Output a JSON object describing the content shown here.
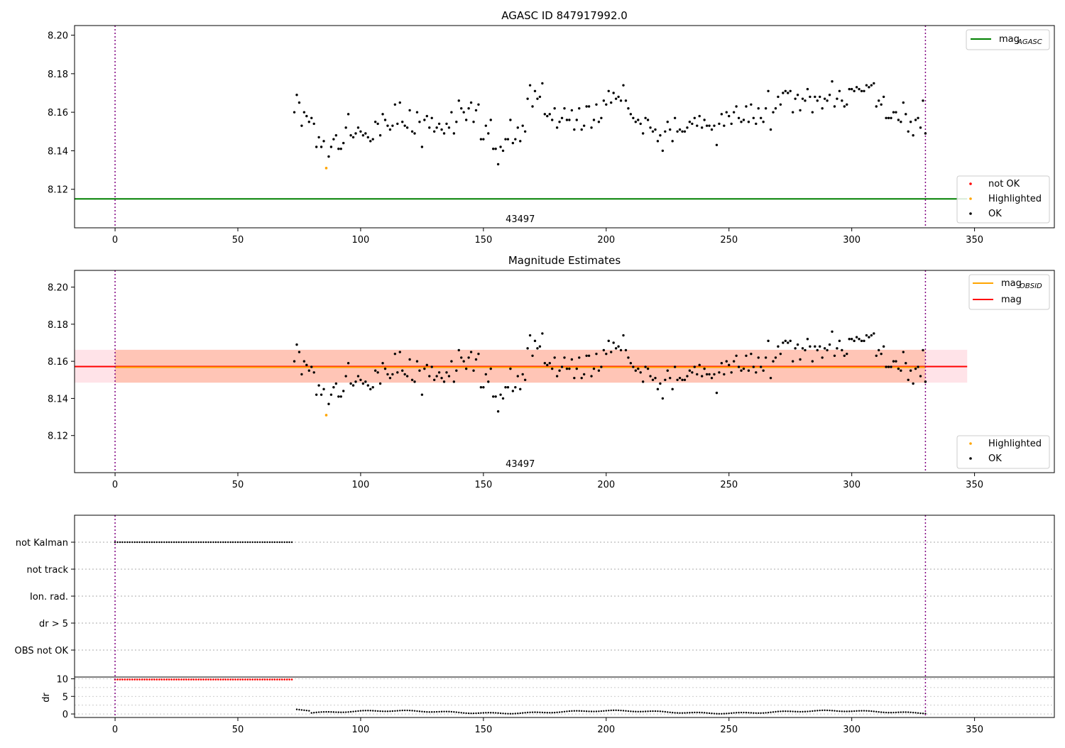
{
  "chart_data": [
    {
      "type": "scatter",
      "title": "AGASC ID 847917992.0",
      "xlim": [
        -16.5,
        382.5
      ],
      "ylim": [
        8.1,
        8.205
      ],
      "xticks": [
        0,
        50,
        100,
        150,
        200,
        250,
        300,
        350
      ],
      "yticks": [
        8.12,
        8.14,
        8.16,
        8.18,
        8.2
      ],
      "ytick_labels": [
        "8.12",
        "8.14",
        "8.16",
        "8.18",
        "8.20"
      ],
      "vlines": [
        0,
        330
      ],
      "hline": {
        "name": "mag_AGASC",
        "value": 8.115,
        "color": "#008000"
      },
      "obsid_label": {
        "text": "43497",
        "x": 165
      },
      "highlighted": [
        [
          86,
          8.131
        ]
      ],
      "ok_points_note": "OK series generated from segment table (x, y) below",
      "legend_lines": [
        {
          "label": "mag",
          "sub": "AGASC",
          "color": "#008000"
        }
      ],
      "legend_points": [
        {
          "label": "not OK",
          "color": "#ff0000"
        },
        {
          "label": "Highlighted",
          "color": "#ffa500"
        },
        {
          "label": "OK",
          "color": "#000000"
        }
      ]
    },
    {
      "type": "scatter",
      "title": "Magnitude Estimates",
      "xlim": [
        -16.5,
        382.5
      ],
      "ylim": [
        8.1,
        8.209
      ],
      "xticks": [
        0,
        50,
        100,
        150,
        200,
        250,
        300,
        350
      ],
      "yticks": [
        8.12,
        8.14,
        8.16,
        8.18,
        8.2
      ],
      "ytick_labels": [
        "8.12",
        "8.14",
        "8.16",
        "8.18",
        "8.20"
      ],
      "vlines": [
        0,
        330
      ],
      "mag": {
        "value": 8.1572,
        "lo": 8.1485,
        "hi": 8.1662,
        "color": "#ff0000"
      },
      "mag_obsid": {
        "value": 8.1568,
        "lo": 8.1485,
        "hi": 8.1662,
        "x_range": [
          0,
          330
        ],
        "color": "#ffa500"
      },
      "obsid_label": {
        "text": "43497",
        "x": 165
      },
      "highlighted": [
        [
          86,
          8.131
        ]
      ],
      "legend_lines": [
        {
          "label": "mag",
          "sub": "OBSID",
          "color": "#ffa500"
        },
        {
          "label": "mag",
          "sub": "",
          "color": "#ff0000"
        }
      ],
      "legend_points": [
        {
          "label": "Highlighted",
          "color": "#ffa500"
        },
        {
          "label": "OK",
          "color": "#000000"
        }
      ]
    },
    {
      "type": "scatter",
      "title": "",
      "flags": [
        "not Kalman",
        "not track",
        "Ion. rad.",
        "dr > 5",
        "OBS not OK"
      ],
      "flag_ranges": {
        "not Kalman": [
          0,
          72
        ]
      },
      "xlim": [
        -16.5,
        382.5
      ],
      "vlines": [
        0,
        330
      ],
      "xticks": [
        0,
        50,
        100,
        150,
        200,
        250,
        300,
        350
      ],
      "dr_ylabel": "dr",
      "dr_yticks": [
        0,
        5,
        10
      ],
      "dr_ylim": [
        -1,
        10.5
      ],
      "dr_bad": {
        "x_range": [
          0,
          72
        ],
        "value": 9.8,
        "color": "#ff0000"
      },
      "dr_good_note": "dr values between 0 and 1.3 for x = 74 .. 330"
    }
  ],
  "ok_series": {
    "segments": [
      [
        73,
        8.16
      ],
      [
        74,
        8.169
      ],
      [
        75,
        8.165
      ],
      [
        76,
        8.153
      ],
      [
        77,
        8.16
      ],
      [
        78,
        8.158
      ],
      [
        79,
        8.155
      ],
      [
        80,
        8.157
      ],
      [
        81,
        8.154
      ],
      [
        82,
        8.142
      ],
      [
        83,
        8.147
      ],
      [
        84,
        8.142
      ],
      [
        85,
        8.145
      ],
      [
        87,
        8.137
      ],
      [
        88,
        8.142
      ],
      [
        89,
        8.146
      ],
      [
        90,
        8.148
      ],
      [
        91,
        8.141
      ],
      [
        92,
        8.141
      ],
      [
        93,
        8.144
      ],
      [
        94,
        8.152
      ],
      [
        95,
        8.159
      ],
      [
        96,
        8.148
      ],
      [
        97,
        8.147
      ],
      [
        98,
        8.149
      ],
      [
        99,
        8.152
      ],
      [
        100,
        8.15
      ],
      [
        101,
        8.148
      ],
      [
        102,
        8.149
      ],
      [
        103,
        8.147
      ],
      [
        104,
        8.145
      ],
      [
        105,
        8.146
      ],
      [
        106,
        8.155
      ],
      [
        107,
        8.154
      ],
      [
        108,
        8.148
      ],
      [
        109,
        8.159
      ],
      [
        110,
        8.156
      ],
      [
        111,
        8.153
      ],
      [
        112,
        8.151
      ],
      [
        113,
        8.153
      ],
      [
        114,
        8.164
      ],
      [
        115,
        8.154
      ],
      [
        116,
        8.165
      ],
      [
        117,
        8.155
      ],
      [
        118,
        8.153
      ],
      [
        119,
        8.152
      ],
      [
        120,
        8.161
      ],
      [
        121,
        8.15
      ],
      [
        122,
        8.149
      ],
      [
        123,
        8.16
      ],
      [
        124,
        8.155
      ],
      [
        125,
        8.142
      ],
      [
        126,
        8.156
      ],
      [
        127,
        8.158
      ],
      [
        128,
        8.152
      ],
      [
        129,
        8.157
      ],
      [
        130,
        8.15
      ],
      [
        131,
        8.152
      ],
      [
        132,
        8.154
      ],
      [
        133,
        8.151
      ],
      [
        134,
        8.149
      ],
      [
        135,
        8.154
      ],
      [
        136,
        8.152
      ],
      [
        137,
        8.16
      ],
      [
        138,
        8.149
      ],
      [
        139,
        8.155
      ],
      [
        140,
        8.166
      ],
      [
        141,
        8.162
      ],
      [
        142,
        8.16
      ],
      [
        143,
        8.156
      ],
      [
        144,
        8.162
      ],
      [
        145,
        8.165
      ],
      [
        146,
        8.155
      ],
      [
        147,
        8.161
      ],
      [
        148,
        8.164
      ],
      [
        149,
        8.146
      ],
      [
        150,
        8.146
      ],
      [
        151,
        8.153
      ],
      [
        152,
        8.149
      ],
      [
        153,
        8.156
      ],
      [
        154,
        8.141
      ],
      [
        155,
        8.141
      ],
      [
        156,
        8.133
      ],
      [
        157,
        8.142
      ],
      [
        158,
        8.14
      ],
      [
        159,
        8.146
      ],
      [
        160,
        8.146
      ],
      [
        161,
        8.156
      ],
      [
        162,
        8.144
      ],
      [
        163,
        8.146
      ],
      [
        164,
        8.152
      ],
      [
        165,
        8.145
      ],
      [
        166,
        8.153
      ],
      [
        167,
        8.15
      ],
      [
        168,
        8.167
      ],
      [
        169,
        8.174
      ],
      [
        170,
        8.163
      ],
      [
        171,
        8.171
      ],
      [
        172,
        8.167
      ],
      [
        173,
        8.168
      ],
      [
        174,
        8.175
      ],
      [
        175,
        8.159
      ],
      [
        176,
        8.158
      ],
      [
        177,
        8.159
      ],
      [
        178,
        8.156
      ],
      [
        179,
        8.162
      ],
      [
        180,
        8.152
      ],
      [
        181,
        8.155
      ],
      [
        182,
        8.157
      ],
      [
        183,
        8.162
      ],
      [
        184,
        8.156
      ],
      [
        185,
        8.156
      ],
      [
        186,
        8.161
      ],
      [
        187,
        8.151
      ],
      [
        188,
        8.156
      ],
      [
        189,
        8.162
      ],
      [
        190,
        8.151
      ],
      [
        191,
        8.153
      ],
      [
        192,
        8.163
      ],
      [
        193,
        8.163
      ],
      [
        194,
        8.152
      ],
      [
        195,
        8.156
      ],
      [
        196,
        8.164
      ],
      [
        197,
        8.155
      ],
      [
        198,
        8.157
      ],
      [
        199,
        8.166
      ],
      [
        200,
        8.164
      ],
      [
        201,
        8.171
      ],
      [
        202,
        8.165
      ],
      [
        203,
        8.17
      ],
      [
        204,
        8.167
      ],
      [
        205,
        8.168
      ],
      [
        206,
        8.166
      ],
      [
        207,
        8.174
      ],
      [
        208,
        8.166
      ],
      [
        209,
        8.162
      ],
      [
        210,
        8.159
      ],
      [
        211,
        8.157
      ],
      [
        212,
        8.155
      ],
      [
        213,
        8.156
      ],
      [
        214,
        8.154
      ],
      [
        215,
        8.149
      ],
      [
        216,
        8.157
      ],
      [
        217,
        8.156
      ],
      [
        218,
        8.152
      ],
      [
        219,
        8.15
      ],
      [
        220,
        8.151
      ],
      [
        221,
        8.145
      ],
      [
        222,
        8.148
      ],
      [
        223,
        8.14
      ],
      [
        224,
        8.15
      ],
      [
        225,
        8.155
      ],
      [
        226,
        8.151
      ],
      [
        227,
        8.145
      ],
      [
        228,
        8.157
      ],
      [
        229,
        8.15
      ],
      [
        230,
        8.151
      ],
      [
        231,
        8.15
      ],
      [
        232,
        8.15
      ],
      [
        233,
        8.152
      ],
      [
        234,
        8.155
      ],
      [
        235,
        8.154
      ],
      [
        236,
        8.157
      ],
      [
        237,
        8.153
      ],
      [
        238,
        8.158
      ],
      [
        239,
        8.152
      ],
      [
        240,
        8.156
      ],
      [
        241,
        8.153
      ],
      [
        242,
        8.153
      ],
      [
        243,
        8.151
      ],
      [
        244,
        8.153
      ],
      [
        245,
        8.143
      ],
      [
        246,
        8.154
      ],
      [
        247,
        8.159
      ],
      [
        248,
        8.153
      ],
      [
        249,
        8.16
      ],
      [
        250,
        8.158
      ],
      [
        251,
        8.154
      ],
      [
        252,
        8.16
      ],
      [
        253,
        8.163
      ],
      [
        254,
        8.157
      ],
      [
        255,
        8.155
      ],
      [
        256,
        8.156
      ],
      [
        257,
        8.163
      ],
      [
        258,
        8.155
      ],
      [
        259,
        8.164
      ],
      [
        260,
        8.157
      ],
      [
        261,
        8.154
      ],
      [
        262,
        8.162
      ],
      [
        263,
        8.157
      ],
      [
        264,
        8.155
      ],
      [
        265,
        8.162
      ],
      [
        266,
        8.171
      ],
      [
        267,
        8.151
      ],
      [
        268,
        8.16
      ],
      [
        269,
        8.162
      ],
      [
        270,
        8.168
      ],
      [
        271,
        8.164
      ],
      [
        272,
        8.17
      ],
      [
        273,
        8.171
      ],
      [
        274,
        8.17
      ],
      [
        275,
        8.171
      ],
      [
        276,
        8.16
      ],
      [
        277,
        8.167
      ],
      [
        278,
        8.169
      ],
      [
        279,
        8.161
      ],
      [
        280,
        8.167
      ],
      [
        281,
        8.166
      ],
      [
        282,
        8.172
      ],
      [
        283,
        8.168
      ],
      [
        284,
        8.16
      ],
      [
        285,
        8.168
      ],
      [
        286,
        8.166
      ],
      [
        287,
        8.168
      ],
      [
        288,
        8.162
      ],
      [
        289,
        8.167
      ],
      [
        290,
        8.166
      ],
      [
        291,
        8.169
      ],
      [
        292,
        8.176
      ],
      [
        293,
        8.163
      ],
      [
        294,
        8.167
      ],
      [
        295,
        8.171
      ],
      [
        296,
        8.166
      ],
      [
        297,
        8.163
      ],
      [
        298,
        8.164
      ],
      [
        299,
        8.172
      ],
      [
        300,
        8.172
      ],
      [
        301,
        8.171
      ],
      [
        302,
        8.173
      ],
      [
        303,
        8.172
      ],
      [
        304,
        8.171
      ],
      [
        305,
        8.171
      ],
      [
        306,
        8.174
      ],
      [
        307,
        8.173
      ],
      [
        308,
        8.174
      ],
      [
        309,
        8.175
      ],
      [
        310,
        8.163
      ],
      [
        311,
        8.166
      ],
      [
        312,
        8.164
      ],
      [
        313,
        8.168
      ],
      [
        314,
        8.157
      ],
      [
        315,
        8.157
      ],
      [
        316,
        8.157
      ],
      [
        317,
        8.16
      ],
      [
        318,
        8.16
      ],
      [
        319,
        8.156
      ],
      [
        320,
        8.155
      ],
      [
        321,
        8.165
      ],
      [
        322,
        8.159
      ],
      [
        323,
        8.15
      ],
      [
        324,
        8.155
      ],
      [
        325,
        8.148
      ],
      [
        326,
        8.156
      ],
      [
        327,
        8.157
      ],
      [
        328,
        8.152
      ],
      [
        329,
        8.166
      ],
      [
        330,
        8.149
      ]
    ]
  },
  "colors": {
    "ok": "#000000",
    "not_ok": "#ff0000",
    "highlighted": "#ffa500",
    "vline": "#800080",
    "mag_band": "#ffc0cb",
    "obsid_band": "#ffa07a"
  }
}
